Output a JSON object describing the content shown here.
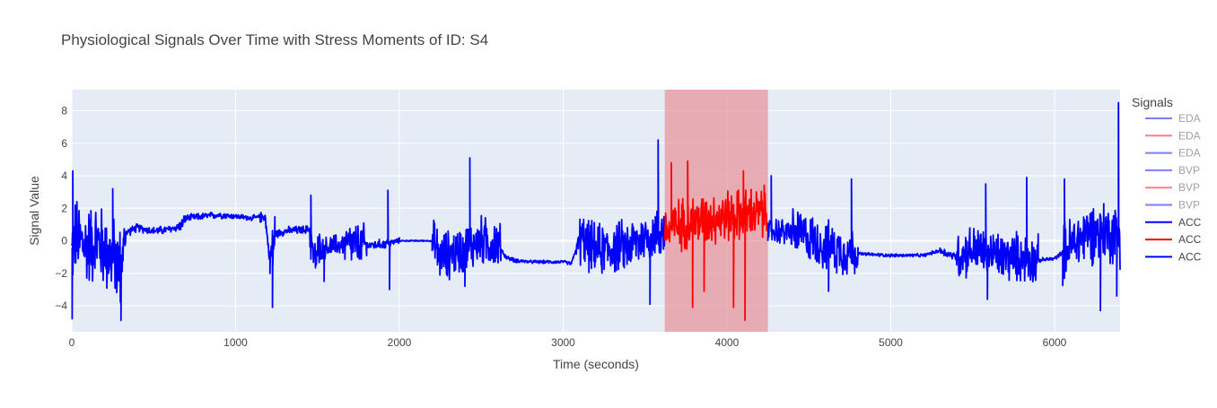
{
  "chart_data": {
    "type": "line",
    "title": "Physiological Signals Over Time with Stress Moments of ID: S4",
    "xlabel": "Time (seconds)",
    "ylabel": "Signal Value",
    "xlim": [
      0,
      6400
    ],
    "ylim": [
      -5.6,
      9.3
    ],
    "x_ticks": [
      0,
      1000,
      2000,
      3000,
      4000,
      5000,
      6000
    ],
    "y_ticks": [
      -4,
      -2,
      0,
      2,
      4,
      6,
      8
    ],
    "grid": true,
    "stress_region": {
      "x_start": 3620,
      "x_end": 4250,
      "color": "#e88890"
    },
    "legend": {
      "title": "Signals",
      "placement": "right",
      "items": [
        {
          "label": "EDA",
          "color": "#0000ff",
          "faded": true
        },
        {
          "label": "EDA",
          "color": "#ff0000",
          "faded": true
        },
        {
          "label": "EDA",
          "color": "#0000ff",
          "faded": true
        },
        {
          "label": "BVP",
          "color": "#0000ff",
          "faded": true
        },
        {
          "label": "BVP",
          "color": "#ff0000",
          "faded": true
        },
        {
          "label": "BVP",
          "color": "#0000ff",
          "faded": true
        },
        {
          "label": "ACC",
          "color": "#0000ff",
          "faded": false
        },
        {
          "label": "ACC",
          "color": "#ff0000",
          "faded": false
        },
        {
          "label": "ACC",
          "color": "#0000ff",
          "faded": false
        }
      ]
    },
    "series": [
      {
        "name": "ACC",
        "color": "#0000ff",
        "segments": [
          [
            0,
            4,
            1.2
          ],
          [
            4,
            300,
            3.0
          ],
          [
            300,
            330,
            1.6
          ],
          [
            330,
            650,
            0.3
          ],
          [
            650,
            700,
            0.4
          ],
          [
            700,
            950,
            0.25
          ],
          [
            950,
            1150,
            0.2
          ],
          [
            1150,
            1210,
            0.4
          ],
          [
            1210,
            1240,
            2.2
          ],
          [
            1240,
            1450,
            0.3
          ],
          [
            1450,
            1520,
            1.5
          ],
          [
            1520,
            1660,
            0.8
          ],
          [
            1660,
            1800,
            1.6
          ],
          [
            1800,
            1950,
            0.35
          ],
          [
            1950,
            2000,
            0.2
          ],
          [
            2000,
            2200,
            0.05
          ],
          [
            2200,
            2620,
            1.8
          ],
          [
            2620,
            2750,
            0.15
          ],
          [
            2750,
            3080,
            0.12
          ],
          [
            3080,
            3100,
            0.5
          ],
          [
            3100,
            3620,
            1.9
          ]
        ],
        "base_points": [
          [
            0,
            -0.5
          ],
          [
            20,
            0.2
          ],
          [
            80,
            -0.3
          ],
          [
            150,
            0.0
          ],
          [
            200,
            -0.5
          ],
          [
            260,
            -1.2
          ],
          [
            300,
            -1.6
          ],
          [
            330,
            0.5
          ],
          [
            400,
            0.8
          ],
          [
            500,
            0.6
          ],
          [
            600,
            0.7
          ],
          [
            660,
            0.9
          ],
          [
            700,
            1.4
          ],
          [
            800,
            1.5
          ],
          [
            900,
            1.6
          ],
          [
            1000,
            1.5
          ],
          [
            1100,
            1.4
          ],
          [
            1180,
            1.5
          ],
          [
            1210,
            -1.3
          ],
          [
            1240,
            0.4
          ],
          [
            1300,
            0.6
          ],
          [
            1450,
            0.7
          ],
          [
            1480,
            -1.2
          ],
          [
            1520,
            -0.5
          ],
          [
            1600,
            -0.3
          ],
          [
            1660,
            -0.2
          ],
          [
            1800,
            -0.3
          ],
          [
            1900,
            -0.2
          ],
          [
            2000,
            0.0
          ],
          [
            2200,
            0.0
          ],
          [
            2250,
            -1.0
          ],
          [
            2400,
            -0.5
          ],
          [
            2500,
            0.0
          ],
          [
            2600,
            -0.2
          ],
          [
            2650,
            -1.0
          ],
          [
            2700,
            -1.2
          ],
          [
            2800,
            -1.3
          ],
          [
            3000,
            -1.3
          ],
          [
            3050,
            -1.4
          ],
          [
            3100,
            0.1
          ],
          [
            3200,
            -0.6
          ],
          [
            3400,
            -0.3
          ],
          [
            3500,
            0.2
          ],
          [
            3600,
            0.5
          ],
          [
            3620,
            0.8
          ]
        ]
      },
      {
        "name": "ACC",
        "color": "#ff0000",
        "segments": [
          [
            3620,
            4250,
            1.9
          ]
        ],
        "base_points": [
          [
            3620,
            0.5
          ],
          [
            3700,
            1.0
          ],
          [
            3800,
            1.2
          ],
          [
            3900,
            1.4
          ],
          [
            4000,
            1.5
          ],
          [
            4100,
            1.6
          ],
          [
            4200,
            1.7
          ],
          [
            4250,
            1.8
          ]
        ]
      },
      {
        "name": "ACC",
        "color": "#0000ff",
        "segments": [
          [
            4250,
            4400,
            1.0
          ],
          [
            4400,
            4800,
            1.8
          ],
          [
            4800,
            5300,
            0.12
          ],
          [
            5300,
            5400,
            0.3
          ],
          [
            5400,
            5900,
            1.8
          ],
          [
            5900,
            6050,
            0.15
          ],
          [
            6050,
            6400,
            2.2
          ]
        ],
        "base_points": [
          [
            4250,
            0.5
          ],
          [
            4300,
            0.6
          ],
          [
            4400,
            0.5
          ],
          [
            4500,
            0.2
          ],
          [
            4600,
            -0.3
          ],
          [
            4700,
            -0.6
          ],
          [
            4800,
            -0.8
          ],
          [
            5000,
            -0.9
          ],
          [
            5200,
            -0.9
          ],
          [
            5300,
            -0.6
          ],
          [
            5400,
            -1.0
          ],
          [
            5500,
            -0.5
          ],
          [
            5600,
            -0.8
          ],
          [
            5700,
            -1.0
          ],
          [
            5800,
            -1.0
          ],
          [
            5900,
            -1.2
          ],
          [
            6000,
            -1.1
          ],
          [
            6100,
            -0.3
          ],
          [
            6200,
            0.5
          ],
          [
            6300,
            0.6
          ],
          [
            6400,
            0.3
          ]
        ]
      }
    ],
    "spikes": [
      {
        "x": 2,
        "y": -4.8
      },
      {
        "x": 6,
        "y": 4.3
      },
      {
        "x": 250,
        "y": 3.2
      },
      {
        "x": 300,
        "y": -4.9
      },
      {
        "x": 1225,
        "y": -4.1
      },
      {
        "x": 1460,
        "y": 2.8
      },
      {
        "x": 1540,
        "y": -2.5
      },
      {
        "x": 1930,
        "y": 3.1
      },
      {
        "x": 1940,
        "y": -3.0
      },
      {
        "x": 2430,
        "y": 5.1
      },
      {
        "x": 2400,
        "y": -2.8
      },
      {
        "x": 3530,
        "y": -3.9
      },
      {
        "x": 3580,
        "y": 6.2
      },
      {
        "x": 3660,
        "y": 4.8
      },
      {
        "x": 3760,
        "y": 4.9
      },
      {
        "x": 3790,
        "y": -4.1
      },
      {
        "x": 3860,
        "y": -3.1
      },
      {
        "x": 4040,
        "y": -4.1
      },
      {
        "x": 4100,
        "y": 4.3
      },
      {
        "x": 4110,
        "y": -4.9
      },
      {
        "x": 4270,
        "y": 4.0
      },
      {
        "x": 4760,
        "y": 3.8
      },
      {
        "x": 4620,
        "y": -3.1
      },
      {
        "x": 5580,
        "y": 3.5
      },
      {
        "x": 5590,
        "y": -3.6
      },
      {
        "x": 5830,
        "y": 3.9
      },
      {
        "x": 6060,
        "y": 3.8
      },
      {
        "x": 6280,
        "y": -4.3
      },
      {
        "x": 6390,
        "y": 8.5
      },
      {
        "x": 6380,
        "y": -3.4
      }
    ]
  }
}
